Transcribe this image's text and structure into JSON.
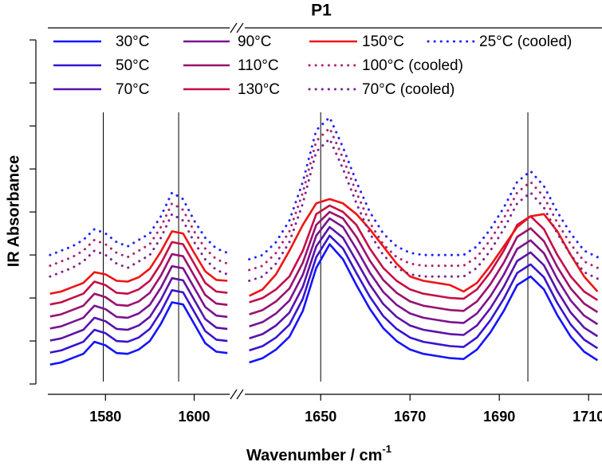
{
  "chart_data": {
    "type": "line",
    "title": "P1",
    "ylabel": "IR Absorbance",
    "xlabel": "Wavenumber / cm",
    "xlabel_sup": "-1",
    "panels": [
      {
        "xlim": [
          1567,
          1608
        ],
        "xticks": [
          1580,
          1600
        ]
      },
      {
        "xlim": [
          1633,
          1713
        ],
        "xticks": [
          1650,
          1670,
          1690,
          1710
        ]
      }
    ],
    "ylim": [
      -0.24,
      8.28
    ],
    "yticks": [
      0,
      1,
      2,
      3,
      4,
      5,
      6,
      7,
      8
    ],
    "vlines": [
      1579.5,
      1596.5,
      1650,
      1696.4
    ],
    "legend": "top",
    "x": [
      1567.5,
      1570,
      1572.5,
      1575,
      1577.5,
      1580,
      1582.5,
      1585,
      1587.5,
      1590,
      1592.5,
      1595,
      1597.5,
      1600,
      1602.5,
      1605,
      1607.5,
      1634,
      1637,
      1640,
      1643,
      1646,
      1649,
      1652,
      1655,
      1658,
      1661,
      1664,
      1667,
      1670,
      1673,
      1676,
      1679,
      1682,
      1685,
      1688,
      1691,
      1694,
      1697,
      1700,
      1703,
      1706,
      1709,
      1712
    ],
    "series": [
      {
        "name": "30°C",
        "color": "#1414ff",
        "linestyle": "solid",
        "values": [
          0.45,
          0.5,
          0.6,
          0.7,
          0.98,
          0.9,
          0.72,
          0.7,
          0.8,
          1.0,
          1.4,
          1.9,
          1.85,
          1.4,
          0.95,
          0.75,
          0.72,
          0.5,
          0.6,
          0.8,
          1.1,
          1.7,
          2.7,
          3.25,
          2.9,
          2.3,
          1.75,
          1.3,
          1.0,
          0.8,
          0.7,
          0.65,
          0.6,
          0.58,
          0.8,
          1.2,
          1.7,
          2.3,
          2.5,
          2.2,
          1.6,
          1.1,
          0.75,
          0.55
        ]
      },
      {
        "name": "50°C",
        "color": "#3814d0",
        "linestyle": "solid",
        "values": [
          0.73,
          0.78,
          0.88,
          0.98,
          1.26,
          1.18,
          1.0,
          0.98,
          1.08,
          1.28,
          1.68,
          2.18,
          2.13,
          1.68,
          1.23,
          1.03,
          1.0,
          0.78,
          0.88,
          1.08,
          1.38,
          1.98,
          2.95,
          3.45,
          3.15,
          2.58,
          2.03,
          1.58,
          1.28,
          1.08,
          0.98,
          0.93,
          0.88,
          0.86,
          1.08,
          1.48,
          1.98,
          2.58,
          2.78,
          2.48,
          1.88,
          1.38,
          1.03,
          0.83
        ]
      },
      {
        "name": "70°C",
        "color": "#5a12aa",
        "linestyle": "solid",
        "values": [
          1.01,
          1.06,
          1.16,
          1.26,
          1.54,
          1.46,
          1.28,
          1.26,
          1.36,
          1.56,
          1.96,
          2.46,
          2.41,
          1.96,
          1.51,
          1.31,
          1.28,
          1.06,
          1.16,
          1.36,
          1.66,
          2.26,
          3.2,
          3.65,
          3.4,
          2.86,
          2.31,
          1.86,
          1.56,
          1.36,
          1.26,
          1.21,
          1.16,
          1.14,
          1.36,
          1.76,
          2.26,
          2.86,
          3.06,
          2.76,
          2.16,
          1.66,
          1.31,
          1.11
        ]
      },
      {
        "name": "90°C",
        "color": "#7a1290",
        "linestyle": "solid",
        "values": [
          1.29,
          1.34,
          1.44,
          1.54,
          1.82,
          1.74,
          1.56,
          1.54,
          1.64,
          1.84,
          2.24,
          2.74,
          2.69,
          2.24,
          1.79,
          1.59,
          1.56,
          1.34,
          1.44,
          1.64,
          1.94,
          2.54,
          3.45,
          3.85,
          3.65,
          3.14,
          2.59,
          2.14,
          1.84,
          1.64,
          1.54,
          1.49,
          1.44,
          1.42,
          1.64,
          2.04,
          2.54,
          3.14,
          3.34,
          3.04,
          2.44,
          1.94,
          1.59,
          1.39
        ]
      },
      {
        "name": "110°C",
        "color": "#9a1070",
        "linestyle": "solid",
        "values": [
          1.57,
          1.62,
          1.72,
          1.82,
          2.1,
          2.02,
          1.84,
          1.82,
          1.92,
          2.12,
          2.52,
          3.02,
          2.97,
          2.52,
          2.07,
          1.87,
          1.84,
          1.62,
          1.72,
          1.92,
          2.22,
          2.82,
          3.7,
          4.0,
          3.85,
          3.42,
          2.87,
          2.42,
          2.12,
          1.92,
          1.82,
          1.77,
          1.72,
          1.7,
          1.92,
          2.32,
          2.82,
          3.42,
          3.62,
          3.32,
          2.72,
          2.22,
          1.87,
          1.67
        ]
      },
      {
        "name": "130°C",
        "color": "#c40e48",
        "linestyle": "solid",
        "values": [
          1.85,
          1.9,
          2.0,
          2.1,
          2.38,
          2.3,
          2.12,
          2.1,
          2.2,
          2.4,
          2.8,
          3.3,
          3.25,
          2.8,
          2.35,
          2.15,
          2.12,
          1.9,
          2.0,
          2.2,
          2.5,
          3.1,
          3.95,
          4.15,
          4.0,
          3.7,
          3.15,
          2.7,
          2.4,
          2.2,
          2.1,
          2.05,
          2.0,
          1.98,
          2.2,
          2.6,
          3.1,
          3.7,
          3.9,
          3.6,
          3.0,
          2.5,
          2.15,
          1.95
        ]
      },
      {
        "name": "150°C",
        "color": "#f01414",
        "linestyle": "solid",
        "values": [
          2.1,
          2.15,
          2.25,
          2.35,
          2.6,
          2.55,
          2.4,
          2.38,
          2.48,
          2.68,
          3.08,
          3.55,
          3.5,
          3.05,
          2.62,
          2.42,
          2.4,
          2.05,
          2.2,
          2.55,
          3.1,
          3.7,
          4.2,
          4.3,
          4.2,
          3.95,
          3.6,
          3.2,
          2.8,
          2.5,
          2.4,
          2.35,
          2.3,
          2.15,
          2.35,
          2.75,
          3.2,
          3.65,
          3.9,
          3.95,
          3.55,
          3.0,
          2.5,
          2.15
        ]
      },
      {
        "name": "25°C (cooled)",
        "color": "#2020ff",
        "linestyle": "dotted",
        "values": [
          3.0,
          3.1,
          3.2,
          3.35,
          3.6,
          3.5,
          3.3,
          3.2,
          3.35,
          3.5,
          3.9,
          4.45,
          4.3,
          3.8,
          3.4,
          3.15,
          3.05,
          2.9,
          3.0,
          3.3,
          3.8,
          4.7,
          5.9,
          6.2,
          5.5,
          4.7,
          4.0,
          3.5,
          3.2,
          3.05,
          3.0,
          3.0,
          3.0,
          3.0,
          3.2,
          3.6,
          4.1,
          4.7,
          4.95,
          4.6,
          4.0,
          3.5,
          3.1,
          2.95
        ]
      },
      {
        "name": "100°C (cooled)",
        "color": "#b0206a",
        "linestyle": "dotted",
        "values": [
          2.75,
          2.85,
          2.95,
          3.1,
          3.35,
          3.25,
          3.05,
          2.95,
          3.1,
          3.25,
          3.65,
          4.2,
          4.05,
          3.55,
          3.15,
          2.9,
          2.8,
          2.65,
          2.75,
          3.05,
          3.55,
          4.45,
          5.65,
          5.95,
          5.25,
          4.45,
          3.75,
          3.25,
          2.95,
          2.8,
          2.75,
          2.75,
          2.75,
          2.75,
          2.95,
          3.35,
          3.85,
          4.45,
          4.7,
          4.35,
          3.75,
          3.25,
          2.85,
          2.7
        ]
      },
      {
        "name": "70°C (cooled)",
        "color": "#7a2090",
        "linestyle": "dotted",
        "values": [
          2.5,
          2.6,
          2.7,
          2.85,
          3.1,
          3.0,
          2.8,
          2.7,
          2.85,
          3.0,
          3.4,
          3.95,
          3.8,
          3.3,
          2.9,
          2.65,
          2.55,
          2.4,
          2.5,
          2.8,
          3.3,
          4.2,
          5.4,
          5.7,
          5.0,
          4.2,
          3.5,
          3.0,
          2.7,
          2.55,
          2.5,
          2.5,
          2.5,
          2.5,
          2.7,
          3.1,
          3.6,
          4.2,
          4.45,
          4.1,
          3.5,
          3.0,
          2.6,
          2.45
        ]
      }
    ]
  }
}
